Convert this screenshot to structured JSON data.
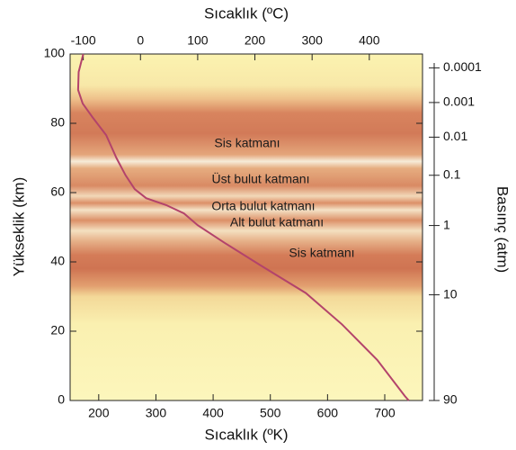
{
  "chart_data": {
    "type": "line",
    "title_top": "Sıcaklık (ºC)",
    "xlabel": "Sıcaklık (ºK)",
    "ylabel": "Yükseklik (km)",
    "y2label": "Basınç (atm)",
    "x": [
      173,
      165,
      164,
      172,
      189,
      213,
      231,
      247,
      263,
      283,
      318,
      349,
      373,
      420,
      483,
      562,
      625,
      687,
      735,
      742
    ],
    "series": [
      {
        "color": "#b3436b",
        "values": [
          100,
          94.8,
          89.6,
          85.7,
          81.8,
          76.6,
          70,
          65,
          61,
          58.4,
          56.4,
          54,
          50.6,
          45.5,
          39,
          31,
          22,
          11.7,
          1.3,
          0
        ]
      }
    ],
    "xlim": [
      150,
      766
    ],
    "xticks": [
      200,
      300,
      400,
      500,
      600,
      700
    ],
    "x2lim": [
      -123,
      493
    ],
    "x2ticks": [
      -100,
      0,
      100,
      200,
      300,
      400
    ],
    "ylim": [
      0,
      100
    ],
    "yticks": [
      0,
      20,
      40,
      60,
      80,
      100
    ],
    "y2ticks": [
      0.0001,
      0.001,
      0.01,
      0.1,
      1,
      10,
      90
    ],
    "y2tick_heights": [
      96,
      86,
      76,
      65,
      50.5,
      30.5,
      0
    ],
    "annotations": [
      "Sis katmanı",
      "Üst bulut katmanı",
      "Orta bulut katmanı",
      "Alt bulut katmanı",
      "Sis katmanı"
    ]
  }
}
